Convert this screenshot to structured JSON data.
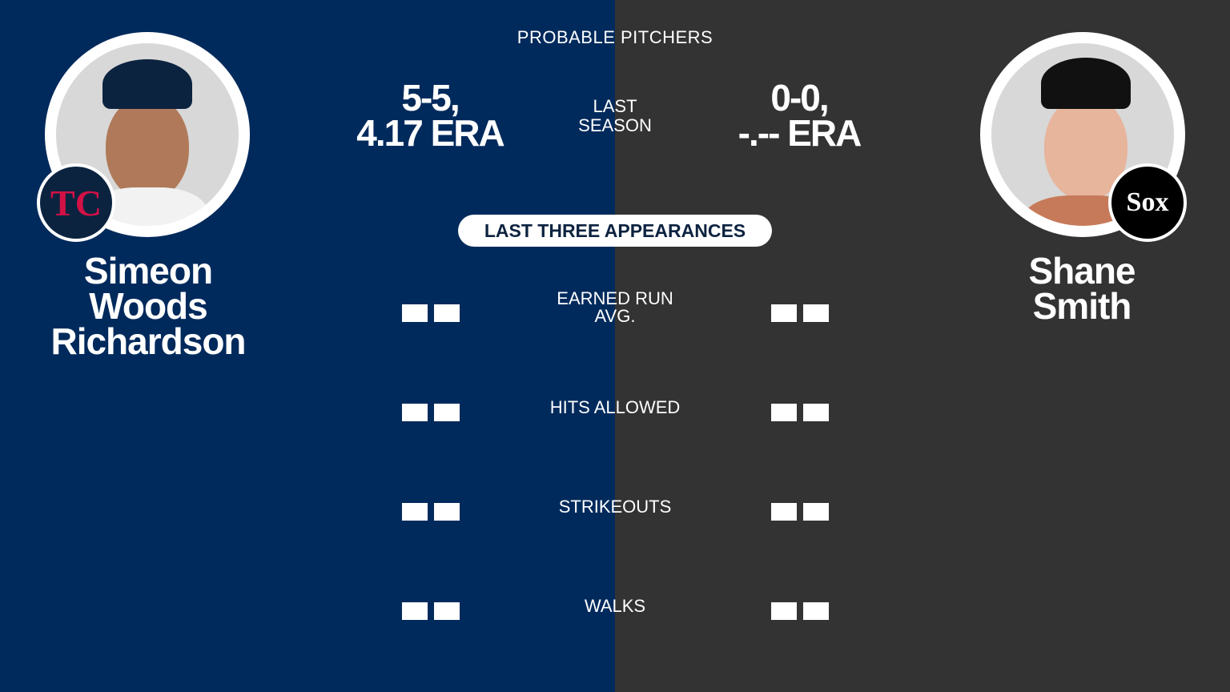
{
  "header": {
    "title": "PROBABLE PITCHERS"
  },
  "colors": {
    "home_bg": "#012a5c",
    "away_bg": "#333333",
    "twins_red": "#d31145"
  },
  "left_pitcher": {
    "name_lines": [
      "Simeon",
      "Woods",
      "Richardson"
    ],
    "record": "5-5,",
    "era": "4.17 ERA",
    "team_logo": "twins-tc-logo",
    "photo": "pitcher-headshot"
  },
  "right_pitcher": {
    "name_lines": [
      "Shane",
      "Smith"
    ],
    "record": "0-0,",
    "era": "-.-- ERA",
    "team_logo": "white-sox-sox-logo",
    "photo": "pitcher-headshot"
  },
  "last_season": {
    "line1": "LAST",
    "line2": "SEASON"
  },
  "section_label": "LAST THREE APPEARANCES",
  "stats": [
    {
      "label_lines": [
        "EARNED RUN",
        "AVG."
      ]
    },
    {
      "label_lines": [
        "HITS ALLOWED"
      ]
    },
    {
      "label_lines": [
        "STRIKEOUTS"
      ]
    },
    {
      "label_lines": [
        "WALKS"
      ]
    }
  ],
  "logos": {
    "twins": "TC",
    "sox": "Sox"
  }
}
